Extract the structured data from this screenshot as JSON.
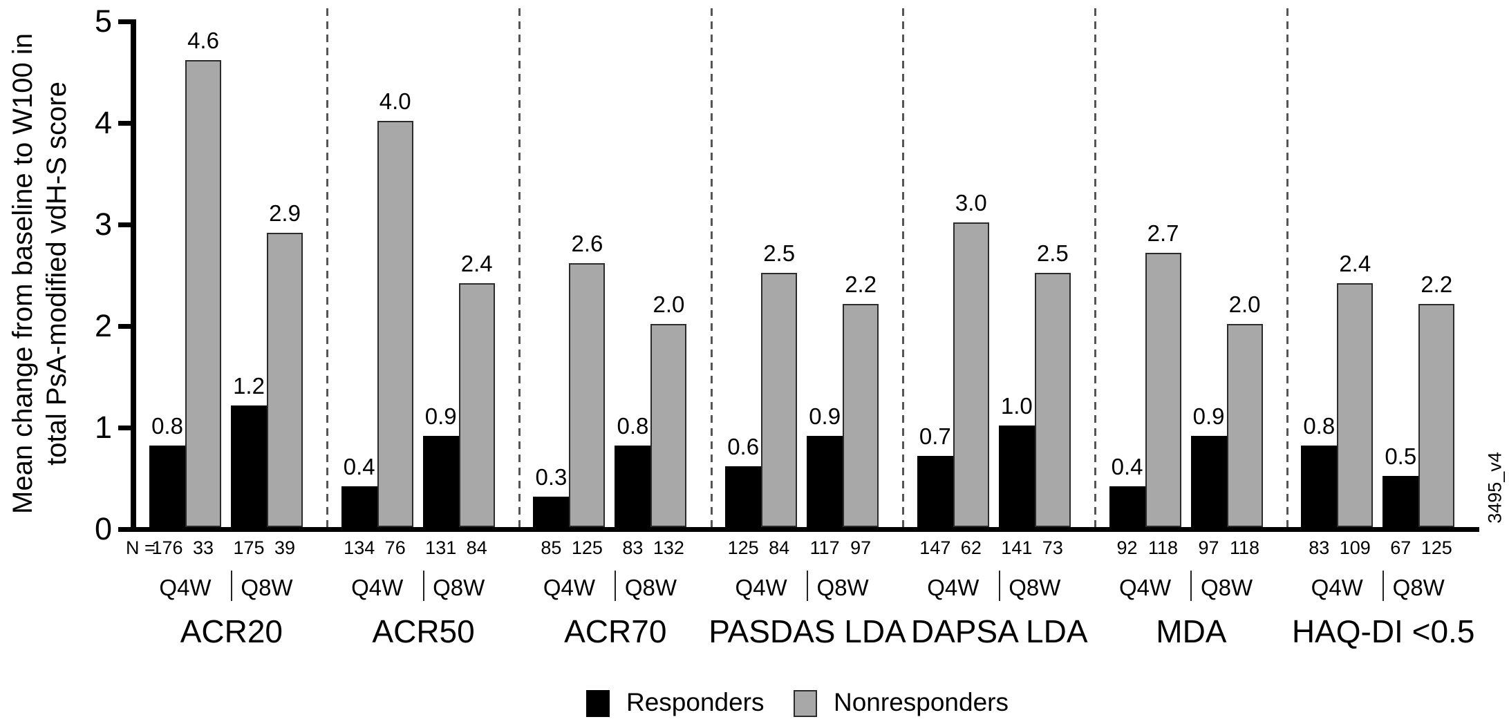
{
  "chart_data": {
    "type": "bar",
    "title": "",
    "y_axis": {
      "label_line1": "Mean change from baseline to W100 in",
      "label_line2": "total PsA-modified vdH-S score",
      "ticks": [
        0,
        1,
        2,
        3,
        4,
        5
      ],
      "range": [
        0,
        5
      ]
    },
    "n_row_prefix": "N =",
    "series": [
      {
        "name": "Responders",
        "color": "#000000"
      },
      {
        "name": "Nonresponders",
        "color": "#a8a8a8"
      }
    ],
    "legend_position": "bottom-center",
    "grid": false,
    "groups": [
      {
        "label": "ACR20",
        "doses": [
          {
            "label": "Q4W",
            "values": [
              0.8,
              4.6
            ],
            "n": [
              176,
              33
            ]
          },
          {
            "label": "Q8W",
            "values": [
              1.2,
              2.9
            ],
            "n": [
              175,
              39
            ]
          }
        ]
      },
      {
        "label": "ACR50",
        "doses": [
          {
            "label": "Q4W",
            "values": [
              0.4,
              4.0
            ],
            "n": [
              134,
              76
            ]
          },
          {
            "label": "Q8W",
            "values": [
              0.9,
              2.4
            ],
            "n": [
              131,
              84
            ]
          }
        ]
      },
      {
        "label": "ACR70",
        "doses": [
          {
            "label": "Q4W",
            "values": [
              0.3,
              2.6
            ],
            "n": [
              85,
              125
            ]
          },
          {
            "label": "Q8W",
            "values": [
              0.8,
              2.0
            ],
            "n": [
              83,
              132
            ]
          }
        ]
      },
      {
        "label": "PASDAS LDA",
        "doses": [
          {
            "label": "Q4W",
            "values": [
              0.6,
              2.5
            ],
            "n": [
              125,
              84
            ]
          },
          {
            "label": "Q8W",
            "values": [
              0.9,
              2.2
            ],
            "n": [
              117,
              97
            ]
          }
        ]
      },
      {
        "label": "DAPSA LDA",
        "doses": [
          {
            "label": "Q4W",
            "values": [
              0.7,
              3.0
            ],
            "n": [
              147,
              62
            ]
          },
          {
            "label": "Q8W",
            "values": [
              1.0,
              2.5
            ],
            "n": [
              141,
              73
            ]
          }
        ]
      },
      {
        "label": "MDA",
        "doses": [
          {
            "label": "Q4W",
            "values": [
              0.4,
              2.7
            ],
            "n": [
              92,
              118
            ]
          },
          {
            "label": "Q8W",
            "values": [
              0.9,
              2.0
            ],
            "n": [
              97,
              118
            ]
          }
        ]
      },
      {
        "label": "HAQ-DI <0.5",
        "doses": [
          {
            "label": "Q4W",
            "values": [
              0.8,
              2.4
            ],
            "n": [
              83,
              109
            ]
          },
          {
            "label": "Q8W",
            "values": [
              0.5,
              2.2
            ],
            "n": [
              67,
              125
            ]
          }
        ]
      }
    ],
    "watermark": "3495_v4"
  }
}
